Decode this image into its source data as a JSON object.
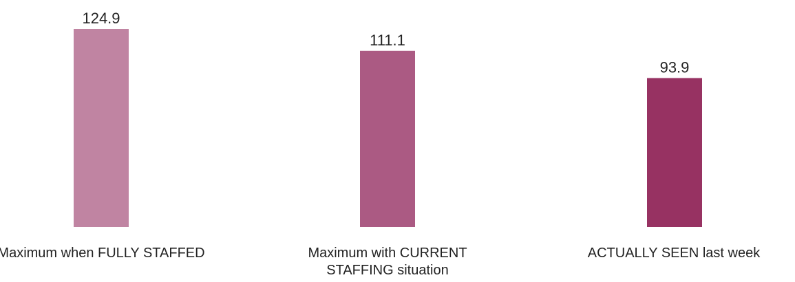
{
  "chart_data": {
    "type": "bar",
    "categories": [
      "Maximum when FULLY STAFFED",
      "Maximum with CURRENT STAFFING situation",
      "ACTUALLY SEEN last week"
    ],
    "values": [
      124.9,
      111.1,
      93.9
    ],
    "value_labels": [
      "124.9",
      "111.1",
      "93.9"
    ],
    "bar_colors": [
      "#c084a2",
      "#ab5a83",
      "#973262"
    ],
    "ylim": [
      0,
      124.9
    ],
    "grid": false,
    "legend": "none"
  }
}
